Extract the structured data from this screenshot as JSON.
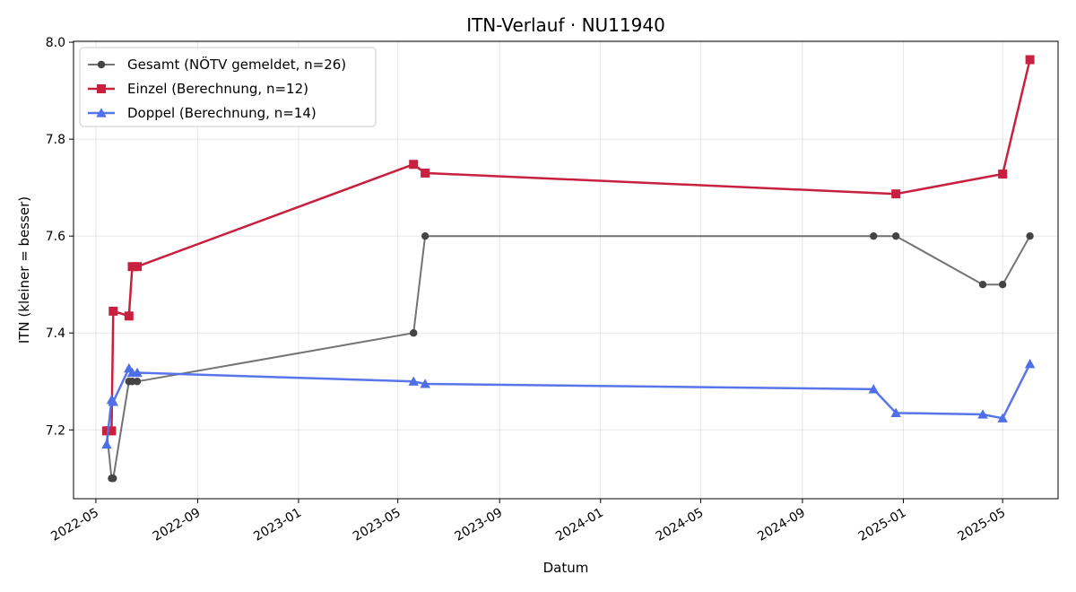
{
  "chart_data": {
    "type": "line",
    "title": "ITN-Verlauf · NU11940",
    "xlabel": "Datum",
    "ylabel": "ITN  (kleiner = besser)",
    "x_axis_type": "date",
    "xlim": [
      "2022-04-04",
      "2025-07-07"
    ],
    "ylim": [
      7.058,
      8.002
    ],
    "x_ticks": [
      "2022-05-01",
      "2022-09-01",
      "2023-01-01",
      "2023-05-01",
      "2023-09-01",
      "2024-01-01",
      "2024-05-01",
      "2024-09-01",
      "2025-01-01",
      "2025-05-01"
    ],
    "x_tick_labels": [
      "2022-05",
      "2022-09",
      "2023-01",
      "2023-05",
      "2023-09",
      "2024-01",
      "2024-05",
      "2024-09",
      "2025-01",
      "2025-05"
    ],
    "y_ticks": [
      7.2,
      7.4,
      7.6,
      7.8,
      8.0
    ],
    "y_tick_labels": [
      "7.2",
      "7.4",
      "7.6",
      "7.8",
      "8.0"
    ],
    "grid": true,
    "legend_position": "top-left",
    "series": [
      {
        "name": "Gesamt (NÖTV gemeldet, n=26)",
        "color": "#444444",
        "marker": "circle",
        "points": [
          {
            "x": "2022-05-14",
            "y": 7.2
          },
          {
            "x": "2022-05-20",
            "y": 7.1
          },
          {
            "x": "2022-05-22",
            "y": 7.1
          },
          {
            "x": "2022-06-10",
            "y": 7.3
          },
          {
            "x": "2022-06-14",
            "y": 7.3
          },
          {
            "x": "2022-06-20",
            "y": 7.3
          },
          {
            "x": "2023-05-20",
            "y": 7.4
          },
          {
            "x": "2023-06-03",
            "y": 7.6
          },
          {
            "x": "2024-11-26",
            "y": 7.6
          },
          {
            "x": "2024-12-23",
            "y": 7.6
          },
          {
            "x": "2025-04-07",
            "y": 7.5
          },
          {
            "x": "2025-05-01",
            "y": 7.5
          },
          {
            "x": "2025-06-03",
            "y": 7.6
          }
        ]
      },
      {
        "name": "Einzel (Berechnung, n=12)",
        "color": "#c8203f",
        "marker": "square",
        "points": [
          {
            "x": "2022-05-14",
            "y": 7.198
          },
          {
            "x": "2022-05-20",
            "y": 7.198
          },
          {
            "x": "2022-05-22",
            "y": 7.445
          },
          {
            "x": "2022-06-10",
            "y": 7.435
          },
          {
            "x": "2022-06-14",
            "y": 7.537
          },
          {
            "x": "2022-06-20",
            "y": 7.537
          },
          {
            "x": "2023-05-20",
            "y": 7.748
          },
          {
            "x": "2023-06-03",
            "y": 7.73
          },
          {
            "x": "2024-12-23",
            "y": 7.687
          },
          {
            "x": "2025-05-01",
            "y": 7.728
          },
          {
            "x": "2025-06-03",
            "y": 7.964
          }
        ]
      },
      {
        "name": "Doppel (Berechnung, n=14)",
        "color": "#4f6fe8",
        "marker": "triangle",
        "points": [
          {
            "x": "2022-05-14",
            "y": 7.17
          },
          {
            "x": "2022-05-20",
            "y": 7.262
          },
          {
            "x": "2022-05-22",
            "y": 7.258
          },
          {
            "x": "2022-06-10",
            "y": 7.327
          },
          {
            "x": "2022-06-14",
            "y": 7.318
          },
          {
            "x": "2022-06-20",
            "y": 7.318
          },
          {
            "x": "2023-05-20",
            "y": 7.3
          },
          {
            "x": "2023-06-03",
            "y": 7.295
          },
          {
            "x": "2024-11-26",
            "y": 7.284
          },
          {
            "x": "2024-12-23",
            "y": 7.235
          },
          {
            "x": "2025-04-07",
            "y": 7.232
          },
          {
            "x": "2025-05-01",
            "y": 7.224
          },
          {
            "x": "2025-06-03",
            "y": 7.336
          }
        ]
      }
    ]
  }
}
